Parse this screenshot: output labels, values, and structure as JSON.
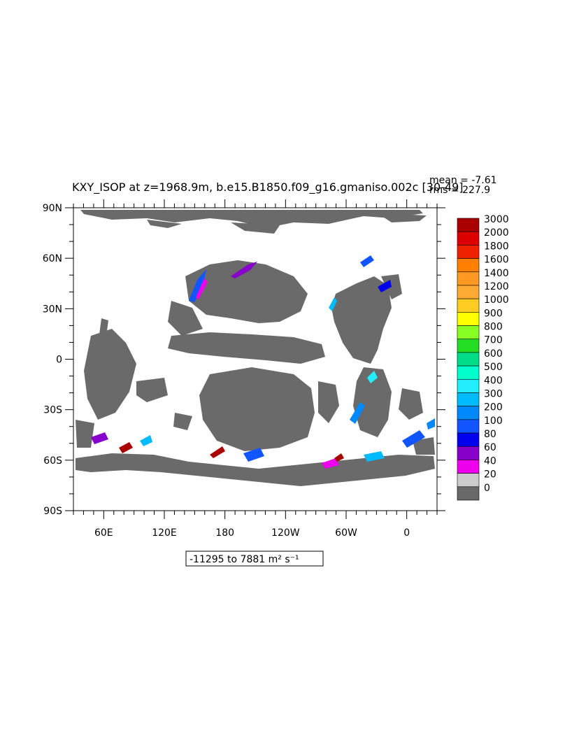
{
  "title": "KXY_ISOP at z=1968.9m, b.e15.B1850.f09_g16.gmaniso.002c [30-49]",
  "stats": {
    "mean": "mean = -7.61",
    "rms": "rms = 227.9"
  },
  "range_label": "-11295 to 7881 m² s⁻¹",
  "lat_ticks": [
    {
      "label": "90N",
      "lat": 90
    },
    {
      "label": "60N",
      "lat": 60
    },
    {
      "label": "30N",
      "lat": 30
    },
    {
      "label": "0",
      "lat": 0
    },
    {
      "label": "30S",
      "lat": -30
    },
    {
      "label": "60S",
      "lat": -60
    },
    {
      "label": "90S",
      "lat": -90
    }
  ],
  "lon_ticks": [
    {
      "label": "60E",
      "lon": 60
    },
    {
      "label": "120E",
      "lon": 120
    },
    {
      "label": "180",
      "lon": 180
    },
    {
      "label": "120W",
      "lon": 240
    },
    {
      "label": "60W",
      "lon": 300
    },
    {
      "label": "0",
      "lon": 360
    }
  ],
  "lon_range": [
    30,
    390
  ],
  "lat_range": [
    -90,
    90
  ],
  "colorbar": {
    "labels": [
      "3000",
      "2000",
      "1800",
      "1600",
      "1400",
      "1200",
      "1000",
      "900",
      "800",
      "700",
      "600",
      "500",
      "400",
      "300",
      "200",
      "100",
      "80",
      "60",
      "40",
      "20",
      "0"
    ],
    "colors": [
      "#aa0000",
      "#dd0000",
      "#ee2200",
      "#ff8000",
      "#ff9922",
      "#ffaa33",
      "#ffcc22",
      "#ffff00",
      "#88ff22",
      "#22dd22",
      "#00dd88",
      "#00ffcc",
      "#22eeff",
      "#00bbff",
      "#0088ff",
      "#1155ff",
      "#0000ee",
      "#8800cc",
      "#ee00ee",
      "#cccccc",
      "#686868"
    ]
  }
}
